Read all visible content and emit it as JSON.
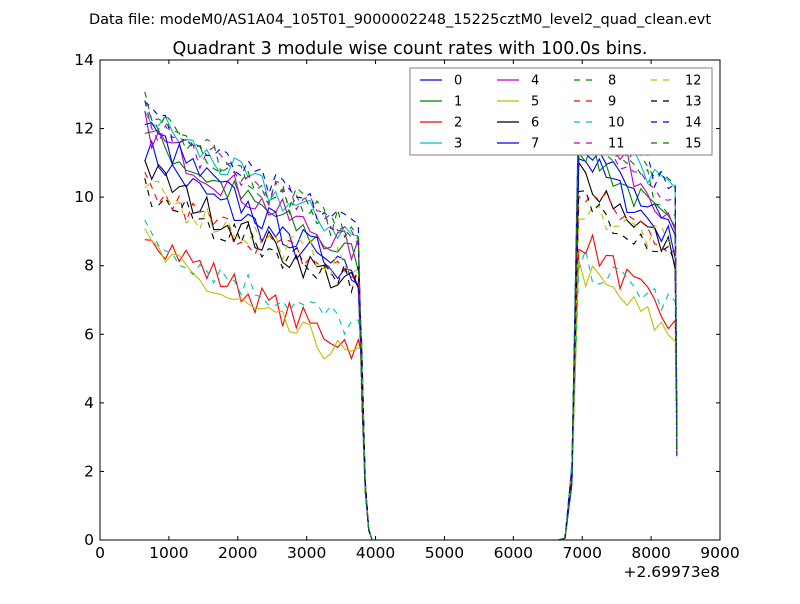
{
  "chart_data": {
    "type": "line",
    "suptitle": "Data file: modeM0/AS1A04_105T01_9000002248_15225cztM0_level2_quad_clean.evt",
    "title": "Quadrant 3 module wise count rates with 100.0s bins.",
    "xlabel": "",
    "ylabel": "",
    "offset_label": "+2.69973e8",
    "xlim": [
      0,
      9000
    ],
    "ylim": [
      0,
      14
    ],
    "xticks": [
      0,
      1000,
      2000,
      3000,
      4000,
      5000,
      6000,
      7000,
      8000,
      9000
    ],
    "yticks": [
      0,
      2,
      4,
      6,
      8,
      10,
      12,
      14
    ],
    "legend_position": "top-right",
    "legend_columns": 4,
    "segments": [
      {
        "x_start": 650,
        "x_end": 3750,
        "step": 100,
        "drop_to": 3950
      },
      {
        "x_start": 6750,
        "x_end": 8350,
        "step": 100
      }
    ],
    "series": [
      {
        "name": "0",
        "color": "#0000ff",
        "style": "solid",
        "start_level": 11.5,
        "end_level": 7.6,
        "seg2_start": 11.3,
        "seg2_end": 8.6
      },
      {
        "name": "1",
        "color": "#008000",
        "style": "solid",
        "start_level": 12.0,
        "end_level": 8.2,
        "seg2_start": 11.6,
        "seg2_end": 8.9
      },
      {
        "name": "2",
        "color": "#ff0000",
        "style": "solid",
        "start_level": 9.2,
        "end_level": 5.6,
        "seg2_start": 8.9,
        "seg2_end": 6.2
      },
      {
        "name": "3",
        "color": "#00bfbf",
        "style": "solid",
        "start_level": 12.6,
        "end_level": 8.8,
        "seg2_start": 13.0,
        "seg2_end": 9.9
      },
      {
        "name": "4",
        "color": "#bf00bf",
        "style": "solid",
        "start_level": 12.1,
        "end_level": 8.4,
        "seg2_start": 12.4,
        "seg2_end": 9.4
      },
      {
        "name": "5",
        "color": "#bfbf00",
        "style": "solid",
        "start_level": 8.7,
        "end_level": 5.2,
        "seg2_start": 7.9,
        "seg2_end": 5.9
      },
      {
        "name": "6",
        "color": "#000000",
        "style": "solid",
        "start_level": 11.0,
        "end_level": 7.3,
        "seg2_start": 10.8,
        "seg2_end": 8.3
      },
      {
        "name": "7",
        "color": "#0000ff",
        "style": "solid",
        "start_level": 12.2,
        "end_level": 7.7,
        "seg2_start": 11.9,
        "seg2_end": 8.7
      },
      {
        "name": "8",
        "color": "#008000",
        "style": "dashed",
        "start_level": 12.8,
        "end_level": 8.9,
        "seg2_start": 12.3,
        "seg2_end": 10.1
      },
      {
        "name": "9",
        "color": "#ff0000",
        "style": "dashed",
        "start_level": 10.3,
        "end_level": 7.7,
        "seg2_start": 10.2,
        "seg2_end": 8.6
      },
      {
        "name": "10",
        "color": "#00bfbf",
        "style": "dashed",
        "start_level": 9.0,
        "end_level": 6.2,
        "seg2_start": 8.1,
        "seg2_end": 6.8
      },
      {
        "name": "11",
        "color": "#bf00bf",
        "style": "dashed",
        "start_level": 12.4,
        "end_level": 9.0,
        "seg2_start": 12.4,
        "seg2_end": 9.6
      },
      {
        "name": "12",
        "color": "#bfbf00",
        "style": "dashed",
        "start_level": 10.3,
        "end_level": 7.9,
        "seg2_start": 9.8,
        "seg2_end": 8.5
      },
      {
        "name": "13",
        "color": "#000000",
        "style": "dashed",
        "start_level": 10.2,
        "end_level": 7.6,
        "seg2_start": 10.0,
        "seg2_end": 8.3
      },
      {
        "name": "14",
        "color": "#0000ff",
        "style": "dashed",
        "start_level": 12.6,
        "end_level": 9.1,
        "seg2_start": 12.6,
        "seg2_end": 10.2
      },
      {
        "name": "15",
        "color": "#008000",
        "style": "dashed",
        "start_level": 12.9,
        "end_level": 8.9,
        "seg2_start": 12.4,
        "seg2_end": 9.6
      }
    ]
  }
}
